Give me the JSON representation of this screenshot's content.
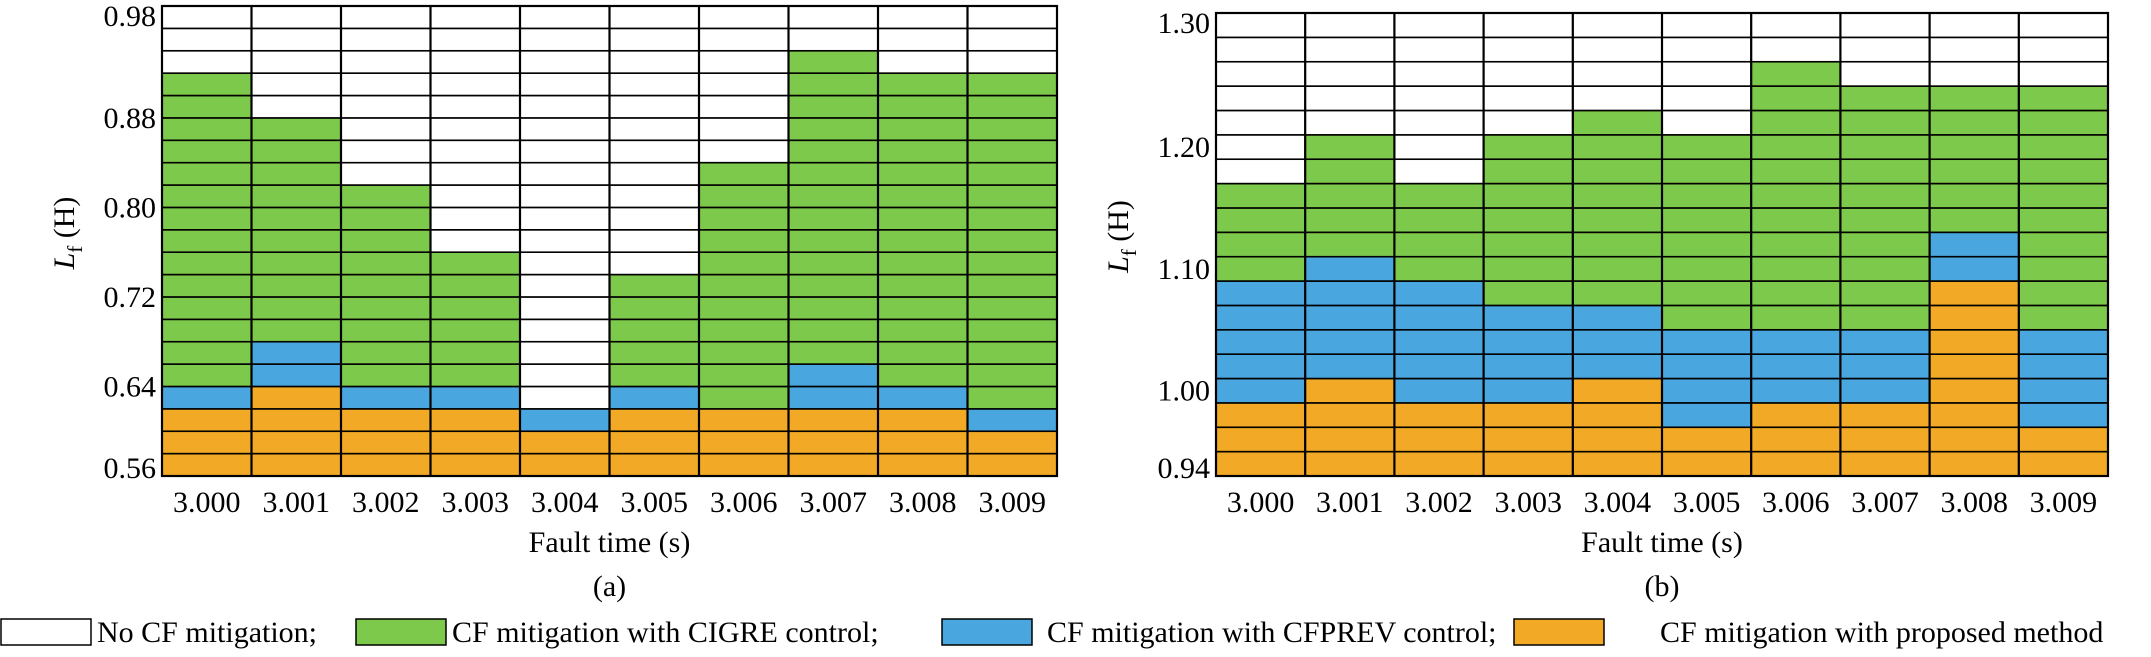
{
  "colors": {
    "none": "#ffffff",
    "cigre": "#7dc94b",
    "cfprev": "#4aa6de",
    "proposed": "#f2aa26",
    "grid": "#000000"
  },
  "legend": [
    {
      "key": "none",
      "label": "No CF mitigation;"
    },
    {
      "key": "cigre",
      "label": "CF mitigation with CIGRE control;"
    },
    {
      "key": "cfprev",
      "label": "CF mitigation with CFPREV control;"
    },
    {
      "key": "proposed",
      "label": "CF mitigation with proposed method"
    }
  ],
  "chart_data": [
    {
      "type": "heatmap",
      "panel_label": "(a)",
      "xlabel": "Fault time (s)",
      "ylabel_main": "L",
      "ylabel_sub": "f",
      "ylabel_unit": " (H)",
      "categories": [
        "3.000",
        "3.001",
        "3.002",
        "3.003",
        "3.004",
        "3.005",
        "3.006",
        "3.007",
        "3.008",
        "3.009"
      ],
      "ylim": [
        0.56,
        0.98
      ],
      "cell_height": 0.02,
      "yticks": [
        "0.98",
        "0.88",
        "0.80",
        "0.72",
        "0.64",
        "0.56"
      ],
      "ytick_values": [
        0.98,
        0.88,
        0.8,
        0.72,
        0.64,
        0.56
      ],
      "upper_limits": {
        "proposed": [
          0.62,
          0.64,
          0.63,
          0.63,
          0.6,
          0.63,
          0.62,
          0.63,
          0.62,
          0.6
        ],
        "cfprev": [
          0.64,
          0.68,
          0.64,
          0.64,
          0.62,
          0.64,
          0.63,
          0.66,
          0.64,
          0.62
        ],
        "cigre": [
          0.92,
          0.88,
          0.82,
          0.76,
          0.62,
          0.74,
          0.84,
          0.94,
          0.92,
          0.92
        ]
      }
    },
    {
      "type": "heatmap",
      "panel_label": "(b)",
      "xlabel": "Fault time (s)",
      "ylabel_main": "L",
      "ylabel_sub": "f",
      "ylabel_unit": " (H)",
      "categories": [
        "3.000",
        "3.001",
        "3.002",
        "3.003",
        "3.004",
        "3.005",
        "3.006",
        "3.007",
        "3.008",
        "3.009"
      ],
      "ylim": [
        0.93,
        1.31
      ],
      "cell_height": 0.02,
      "yticks": [
        "1.30",
        "1.20",
        "1.10",
        "1.00",
        "0.94"
      ],
      "ytick_values": [
        1.3,
        1.2,
        1.1,
        1.0,
        0.94
      ],
      "upper_limits": {
        "proposed": [
          0.99,
          1.01,
          0.99,
          0.99,
          1.01,
          0.97,
          0.99,
          0.99,
          1.09,
          0.97
        ],
        "cfprev": [
          1.09,
          1.11,
          1.09,
          1.07,
          1.07,
          1.05,
          1.05,
          1.05,
          1.13,
          1.05
        ],
        "cigre": [
          1.17,
          1.21,
          1.17,
          1.21,
          1.23,
          1.21,
          1.27,
          1.25,
          1.25,
          1.25
        ]
      }
    }
  ]
}
